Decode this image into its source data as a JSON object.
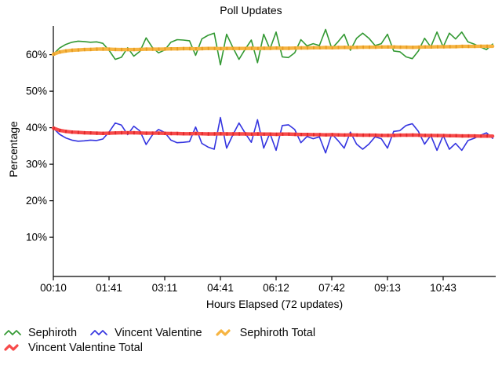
{
  "chart_data": {
    "type": "line",
    "title": "Poll Updates",
    "xlabel": "Hours Elapsed (72 updates)",
    "ylabel": "Percentage",
    "ylim": [
      0,
      68
    ],
    "yticks": [
      10,
      20,
      30,
      40,
      50,
      60
    ],
    "ytick_suffix": "%",
    "x_tick_labels": [
      "00:10",
      "01:41",
      "03:11",
      "04:41",
      "06:12",
      "07:42",
      "09:13",
      "10:43"
    ],
    "x_tick_indices": [
      0,
      9,
      18,
      27,
      36,
      45,
      54,
      63
    ],
    "n_points": 72,
    "grid": false,
    "legend_position": "bottom-left",
    "background": "#ffffff",
    "axis_color": "#000000",
    "series": [
      {
        "name": "Sephiroth",
        "color": "#339933",
        "width": 1.6,
        "values": [
          60.1,
          61.8,
          62.8,
          63.4,
          63.7,
          63.6,
          63.4,
          63.5,
          63.1,
          61.2,
          58.7,
          59.3,
          61.9,
          59.6,
          60.9,
          64.6,
          62.0,
          60.5,
          61.3,
          63.4,
          64.1,
          64.0,
          63.8,
          59.8,
          64.3,
          65.3,
          65.9,
          57.2,
          65.6,
          62.0,
          58.7,
          61.5,
          64.0,
          57.8,
          65.6,
          61.5,
          66.2,
          59.4,
          59.2,
          60.5,
          64.1,
          62.4,
          63.0,
          62.5,
          66.9,
          61.7,
          63.5,
          65.6,
          61.2,
          64.5,
          65.9,
          64.5,
          62.5,
          63.0,
          65.6,
          61.0,
          60.8,
          59.4,
          58.9,
          61.0,
          64.5,
          62.1,
          66.2,
          62.1,
          65.9,
          64.3,
          66.2,
          63.5,
          62.9,
          62.1,
          61.4,
          62.9
        ]
      },
      {
        "name": "Vincent Valentine",
        "color": "#3535E0",
        "width": 1.6,
        "values": [
          39.9,
          38.2,
          37.2,
          36.6,
          36.3,
          36.4,
          36.6,
          36.5,
          36.9,
          38.8,
          41.3,
          40.7,
          38.1,
          40.4,
          39.1,
          35.4,
          38.0,
          39.5,
          38.7,
          36.6,
          35.9,
          36.0,
          36.2,
          40.2,
          35.7,
          34.7,
          34.1,
          42.8,
          34.4,
          38.0,
          41.3,
          38.5,
          36.0,
          42.2,
          34.4,
          38.5,
          33.8,
          40.6,
          40.8,
          39.5,
          35.9,
          37.6,
          37.0,
          37.5,
          33.1,
          38.3,
          36.5,
          34.4,
          38.8,
          35.5,
          34.1,
          35.5,
          37.5,
          37.0,
          34.4,
          39.0,
          39.2,
          40.6,
          41.1,
          39.0,
          35.5,
          37.9,
          33.8,
          37.9,
          34.1,
          35.7,
          33.8,
          36.5,
          37.1,
          37.9,
          38.6,
          37.1
        ]
      },
      {
        "name": "Sephiroth Total",
        "color": "#F6B441",
        "overlay": "#E59B22",
        "width": 4.4,
        "values": [
          60.1,
          60.7,
          61.0,
          61.2,
          61.3,
          61.4,
          61.45,
          61.5,
          61.55,
          61.5,
          61.45,
          61.4,
          61.4,
          61.4,
          61.45,
          61.5,
          61.5,
          61.5,
          61.55,
          61.6,
          61.6,
          61.65,
          61.65,
          61.6,
          61.65,
          61.7,
          61.7,
          61.65,
          61.7,
          61.7,
          61.7,
          61.7,
          61.75,
          61.7,
          61.75,
          61.75,
          61.8,
          61.75,
          61.75,
          61.8,
          61.85,
          61.85,
          61.9,
          61.9,
          61.95,
          61.9,
          61.95,
          62.0,
          61.95,
          62.0,
          62.05,
          62.05,
          62.05,
          62.1,
          62.1,
          62.1,
          62.05,
          62.05,
          62.0,
          62.05,
          62.1,
          62.1,
          62.15,
          62.15,
          62.2,
          62.2,
          62.25,
          62.25,
          62.25,
          62.3,
          62.3,
          62.3
        ]
      },
      {
        "name": "Vincent Valentine Total",
        "color": "#F74A4A",
        "overlay": "#E02828",
        "width": 4.4,
        "values": [
          39.9,
          39.3,
          39.0,
          38.8,
          38.7,
          38.6,
          38.55,
          38.5,
          38.45,
          38.5,
          38.55,
          38.6,
          38.6,
          38.6,
          38.55,
          38.5,
          38.5,
          38.5,
          38.45,
          38.4,
          38.4,
          38.35,
          38.35,
          38.4,
          38.35,
          38.3,
          38.3,
          38.35,
          38.3,
          38.3,
          38.3,
          38.3,
          38.25,
          38.3,
          38.25,
          38.25,
          38.2,
          38.25,
          38.25,
          38.2,
          38.15,
          38.15,
          38.1,
          38.1,
          38.05,
          38.1,
          38.05,
          38.0,
          38.05,
          38.0,
          37.95,
          37.95,
          37.95,
          37.9,
          37.9,
          37.9,
          37.95,
          37.95,
          38.0,
          37.95,
          37.9,
          37.9,
          37.85,
          37.85,
          37.8,
          37.8,
          37.75,
          37.75,
          37.75,
          37.7,
          37.7,
          37.7
        ]
      }
    ]
  }
}
